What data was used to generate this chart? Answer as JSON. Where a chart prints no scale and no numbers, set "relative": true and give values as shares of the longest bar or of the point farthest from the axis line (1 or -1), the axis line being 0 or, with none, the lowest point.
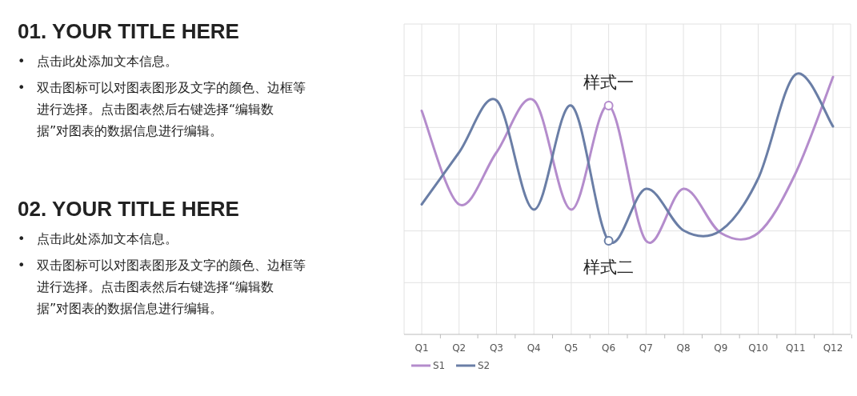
{
  "chart_data": [
    {
      "type": "other",
      "title": "01. YOUR TITLE HERE",
      "annotations": [
        "•\t点击此处添加文本信息。",
        "•\t双击图标可以对图表图形及文字的颜色、边框等进行选择。点击图表然后右键选择“编辑数据”对图表的数据信息进行编辑。"
      ]
    },
    {
      "type": "other",
      "title": "02. YOUR TITLE HERE",
      "annotations": [
        "•\t点击此处添加文本信息。",
        "•\t双击图标可以对图表图形及文字的颜色、边框等进行选择。点击图表然后右键选择“编辑数据”对图表的数据信息进行编辑。"
      ]
    },
    {
      "type": "line",
      "relative": true,
      "grid": true,
      "legend": "bottom left",
      "categories": [
        "Q1",
        "Q2",
        "Q3",
        "Q4",
        "Q5",
        "Q6",
        "Q7",
        "Q8",
        "Q9",
        "Q10",
        "Q11",
        "Q12"
      ],
      "series": [
        {
          "name": "S1",
          "color": "#b48ccc",
          "values": [
            0.86,
            0.5,
            0.7,
            0.9,
            0.48,
            0.88,
            0.36,
            0.56,
            0.39,
            0.39,
            0.62,
            0.99
          ]
        },
        {
          "name": "S2",
          "color": "#6a7ea6",
          "values": [
            0.5,
            0.7,
            0.9,
            0.48,
            0.88,
            0.36,
            0.56,
            0.4,
            0.4,
            0.6,
            1,
            0.8
          ]
        }
      ],
      "annotations": [
        {
          "text": "样式一",
          "x": "Q6",
          "y": 0.88
        },
        {
          "text": "样式二",
          "x": "Q6",
          "y": 0.36
        }
      ]
    }
  ]
}
